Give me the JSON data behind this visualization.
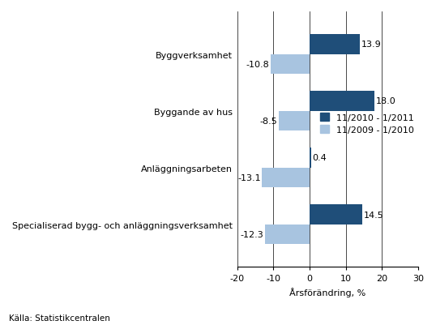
{
  "categories": [
    "Specialiserad bygg- och anläggningsverksamhet",
    "Anläggningsarbeten",
    "Byggande av hus",
    "Byggverksamhet"
  ],
  "series1_label": "11/2010 - 1/2011",
  "series2_label": "11/2009 - 1/2010",
  "series1_values": [
    14.5,
    0.4,
    18.0,
    13.9
  ],
  "series2_values": [
    -12.3,
    -13.1,
    -8.5,
    -10.8
  ],
  "series1_color": "#1F4E79",
  "series2_color": "#A8C4E0",
  "bar_height": 0.35,
  "xlim": [
    -20,
    30
  ],
  "xticks": [
    -20,
    -10,
    0,
    10,
    20,
    30
  ],
  "xlabel": "Årsförändring, %",
  "source_text": "Källa: Statistikcentralen",
  "background_color": "#FFFFFF",
  "grid_color": "#888888",
  "label_fontsize": 8.0,
  "tick_fontsize": 8.0,
  "legend_fontsize": 8.0,
  "source_fontsize": 7.5
}
